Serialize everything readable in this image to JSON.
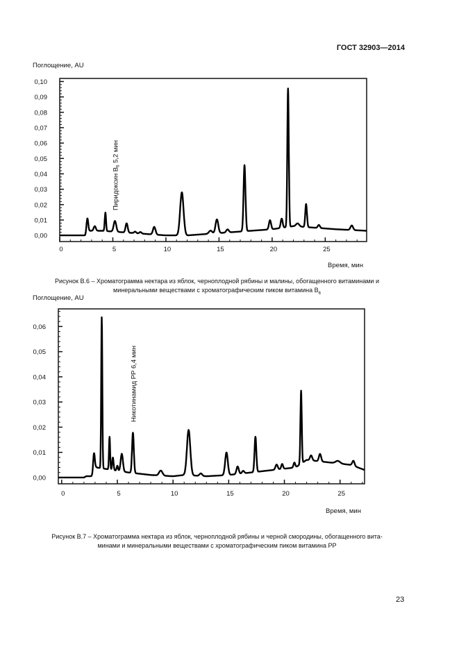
{
  "header": {
    "standard": "ГОСТ 32903—2014"
  },
  "page_number": "23",
  "figures": [
    {
      "caption_line1": "Рисунок В.6 – Хроматограмма нектара из яблок, черноплодной рябины и малины, обогащенного витаминами и",
      "caption_line2_pre": "минеральными веществами с хроматографическим пиком витамина В",
      "caption_line2_sub": "6"
    },
    {
      "caption_line1": "Рисунок В.7 – Хроматограмма нектара из яблок, черноплодной рябины и черной смородины, обогащенного вита-",
      "caption_line2_pre": "минами и минеральными веществами с хроматографическим пиком витамина РР",
      "caption_line2_sub": ""
    }
  ],
  "chart_data": [
    {
      "type": "line",
      "title": "",
      "ylabel": "Поглощение, AU",
      "xlabel": "Время, мин",
      "xlim": [
        0,
        28.9
      ],
      "ylim": [
        -0.004,
        0.102
      ],
      "xticks": [
        0,
        5,
        10,
        15,
        20,
        25
      ],
      "xtick_labels": [
        "0",
        "5",
        "10",
        "15",
        "20",
        "25"
      ],
      "yticks": [
        0,
        0.01,
        0.02,
        0.03,
        0.04,
        0.05,
        0.06,
        0.07,
        0.08,
        0.09,
        0.1
      ],
      "ytick_labels": [
        "0,00",
        "0,01",
        "0,02",
        "0,03",
        "0,04",
        "0,05",
        "0,06",
        "0,07",
        "0,08",
        "0,09",
        "0,10"
      ],
      "annotation": {
        "text_pre": "Пиридоксин В",
        "text_sub": "6",
        "text_post": " 5,2 мин",
        "time": 5.2
      },
      "baseline": [
        [
          0,
          0
        ],
        [
          2.4,
          0
        ],
        [
          2.7,
          0.003
        ],
        [
          4,
          0.003
        ],
        [
          6,
          0.002
        ],
        [
          8,
          0.001
        ],
        [
          10,
          0
        ],
        [
          12,
          0
        ],
        [
          14,
          0.001
        ],
        [
          16,
          0.002
        ],
        [
          18,
          0.003
        ],
        [
          20,
          0.004
        ],
        [
          22,
          0.006
        ],
        [
          24,
          0.005
        ],
        [
          26,
          0.004
        ],
        [
          28.9,
          0.003
        ]
      ],
      "peaks": [
        [
          2.6,
          0.009,
          0.08
        ],
        [
          3.3,
          0.003,
          0.1
        ],
        [
          4.3,
          0.012,
          0.06
        ],
        [
          5.2,
          0.007,
          0.12
        ],
        [
          6.3,
          0.006,
          0.1
        ],
        [
          7.1,
          0.001,
          0.1
        ],
        [
          7.6,
          0.001,
          0.1
        ],
        [
          8.9,
          0.005,
          0.12
        ],
        [
          11.5,
          0.028,
          0.16
        ],
        [
          14.2,
          0.002,
          0.15
        ],
        [
          14.8,
          0.009,
          0.13
        ],
        [
          15.8,
          0.002,
          0.12
        ],
        [
          17.4,
          0.043,
          0.09
        ],
        [
          19.8,
          0.006,
          0.1
        ],
        [
          20.9,
          0.006,
          0.09
        ],
        [
          21.5,
          0.09,
          0.07
        ],
        [
          22.4,
          0.002,
          0.15
        ],
        [
          23.2,
          0.015,
          0.08
        ],
        [
          24.4,
          0.002,
          0.1
        ],
        [
          27.5,
          0.003,
          0.12
        ]
      ]
    },
    {
      "type": "line",
      "title": "",
      "ylabel": "Поглощение, AU",
      "xlabel": "Время, мин",
      "xlim": [
        -0.3,
        27.2
      ],
      "ylim": [
        -0.0025,
        0.067
      ],
      "xticks": [
        0,
        5,
        10,
        15,
        20,
        25
      ],
      "xtick_labels": [
        "0",
        "5",
        "10",
        "15",
        "20",
        "25"
      ],
      "yticks": [
        0,
        0.01,
        0.02,
        0.03,
        0.04,
        0.05,
        0.06
      ],
      "ytick_labels": [
        "0,00",
        "0,01",
        "0,02",
        "0,03",
        "0,04",
        "0,05",
        "0,06"
      ],
      "annotation": {
        "text_pre": "Никотинамид РР 6,4 мин",
        "text_sub": "",
        "text_post": "",
        "time": 6.4
      },
      "baseline": [
        [
          -0.3,
          0
        ],
        [
          2.0,
          0
        ],
        [
          2.2,
          0.0005
        ],
        [
          2.8,
          0.0005
        ],
        [
          3.1,
          0.004
        ],
        [
          6,
          0.002
        ],
        [
          8,
          0.001
        ],
        [
          10,
          0.0005
        ],
        [
          11,
          0.001
        ],
        [
          13,
          0.0005
        ],
        [
          15,
          0.001
        ],
        [
          17,
          0.002
        ],
        [
          18,
          0.0025
        ],
        [
          19,
          0.003
        ],
        [
          21,
          0.004
        ],
        [
          22,
          0.007
        ],
        [
          24,
          0.006
        ],
        [
          26,
          0.005
        ],
        [
          27.2,
          0.003
        ]
      ],
      "peaks": [
        [
          2.9,
          0.008,
          0.08
        ],
        [
          3.6,
          0.06,
          0.05
        ],
        [
          4.3,
          0.013,
          0.05
        ],
        [
          4.6,
          0.005,
          0.06
        ],
        [
          5.0,
          0.002,
          0.06
        ],
        [
          5.4,
          0.007,
          0.1
        ],
        [
          6.4,
          0.016,
          0.08
        ],
        [
          8.9,
          0.002,
          0.15
        ],
        [
          11.4,
          0.018,
          0.15
        ],
        [
          12.5,
          0.001,
          0.12
        ],
        [
          14.8,
          0.009,
          0.12
        ],
        [
          15.8,
          0.003,
          0.1
        ],
        [
          16.3,
          0.001,
          0.1
        ],
        [
          17.4,
          0.014,
          0.08
        ],
        [
          19.3,
          0.002,
          0.1
        ],
        [
          19.8,
          0.002,
          0.08
        ],
        [
          20.9,
          0.002,
          0.08
        ],
        [
          21.5,
          0.029,
          0.06
        ],
        [
          22.4,
          0.002,
          0.1
        ],
        [
          23.2,
          0.003,
          0.1
        ],
        [
          24.8,
          0.001,
          0.2
        ],
        [
          26.2,
          0.002,
          0.1
        ]
      ]
    }
  ]
}
